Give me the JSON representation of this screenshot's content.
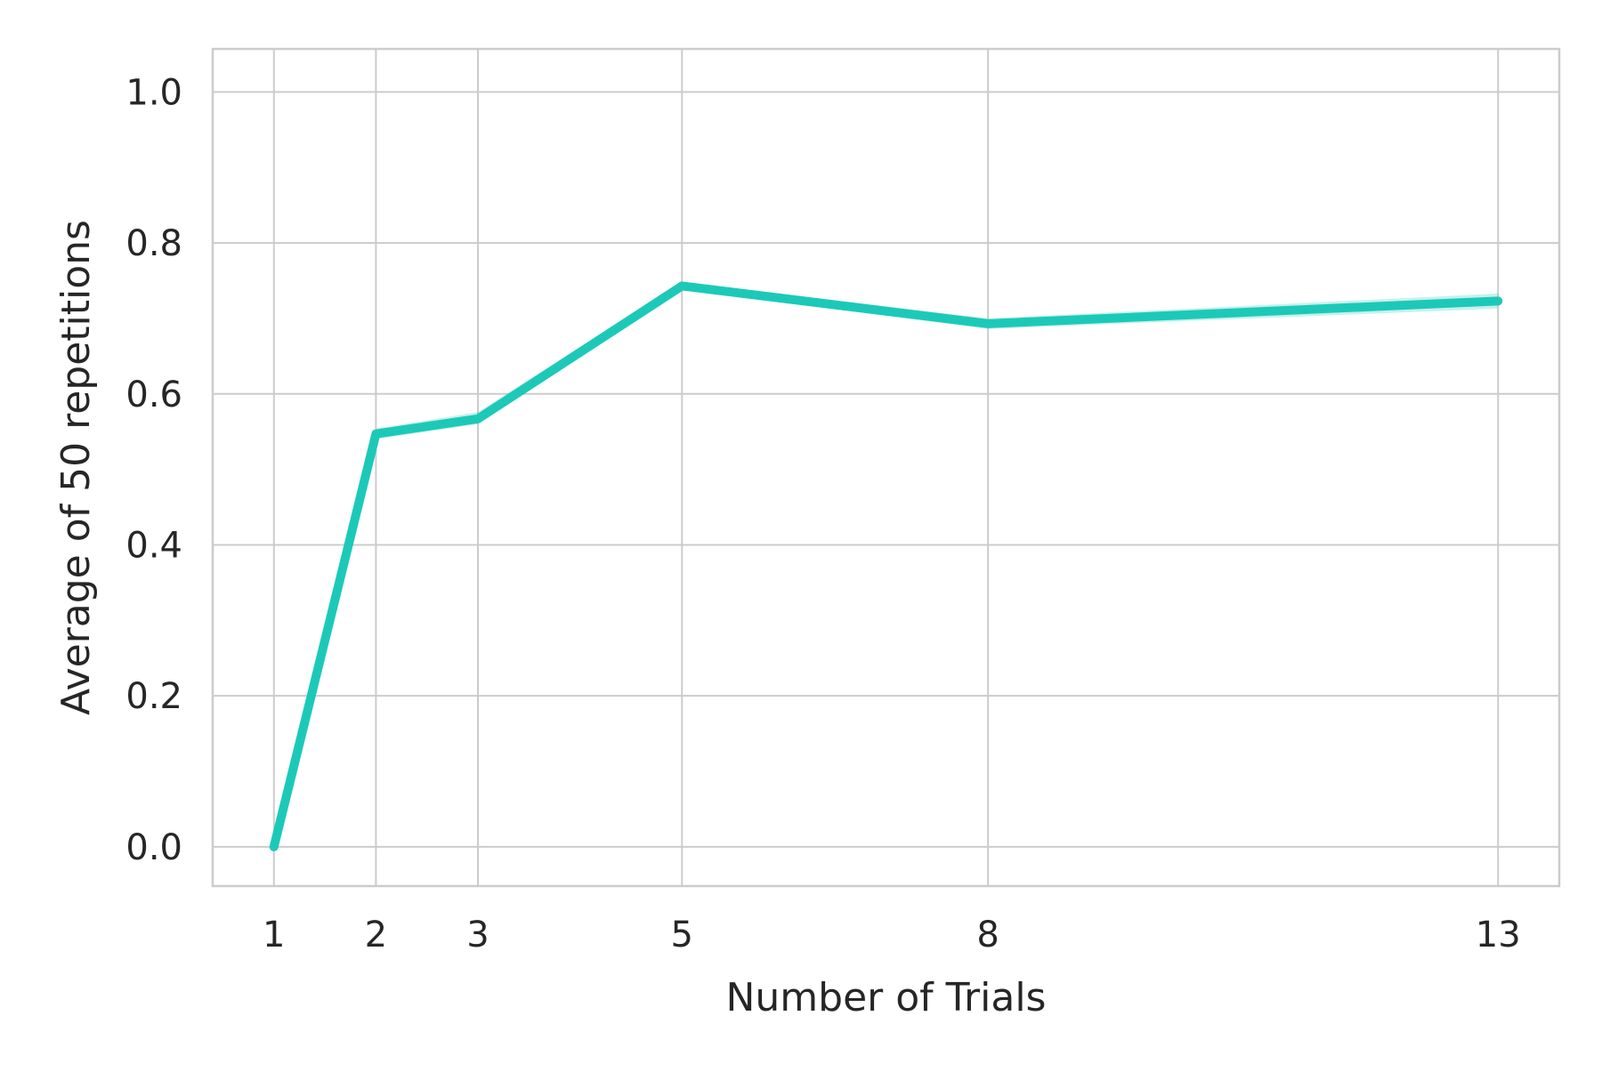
{
  "chart_data": {
    "type": "line",
    "title": "",
    "xlabel": "Number of Trials",
    "ylabel": "Average of 50 repetitions",
    "x": [
      1,
      2,
      3,
      5,
      8,
      13
    ],
    "x_ticks": [
      "1",
      "2",
      "3",
      "5",
      "8",
      "13"
    ],
    "y_ticks": [
      "0.0",
      "0.2",
      "0.4",
      "0.6",
      "0.8",
      "1.0"
    ],
    "xlim": [
      0.4,
      13.6
    ],
    "ylim": [
      -0.052,
      1.057
    ],
    "grid": true,
    "series": [
      {
        "color": "#1cc9b8",
        "values": [
          0.0,
          0.547,
          0.567,
          0.743,
          0.693,
          0.723
        ],
        "ci_lower": [
          0.0,
          0.54,
          0.56,
          0.738,
          0.686,
          0.713
        ],
        "ci_upper": [
          0.0,
          0.554,
          0.576,
          0.748,
          0.7,
          0.733
        ]
      }
    ]
  }
}
